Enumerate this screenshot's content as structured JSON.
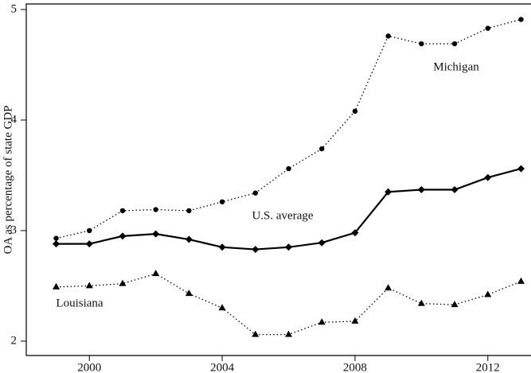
{
  "chart_data": {
    "type": "line",
    "y_label": "OA as percentage of state GDP",
    "x": [
      1999,
      2000,
      2001,
      2002,
      2003,
      2004,
      2005,
      2006,
      2007,
      2008,
      2009,
      2010,
      2011,
      2012,
      2013
    ],
    "series": [
      {
        "name": "Michigan",
        "color": "#000000",
        "marker": "circle",
        "dash": "dotted",
        "values": [
          2.93,
          3.0,
          3.18,
          3.19,
          3.18,
          3.26,
          3.34,
          3.56,
          3.74,
          4.08,
          4.76,
          4.69,
          4.69,
          4.83,
          4.91
        ]
      },
      {
        "name": "U.S. average",
        "color": "#000000",
        "marker": "diamond",
        "dash": "solid",
        "values": [
          2.88,
          2.88,
          2.95,
          2.97,
          2.92,
          2.85,
          2.83,
          2.85,
          2.89,
          2.98,
          3.35,
          3.37,
          3.37,
          3.48,
          3.56
        ]
      },
      {
        "name": "Louisiana",
        "color": "#000000",
        "marker": "triangle",
        "dash": "dotted",
        "values": [
          2.49,
          2.5,
          2.52,
          2.61,
          2.43,
          2.3,
          2.06,
          2.06,
          2.17,
          2.18,
          2.48,
          2.34,
          2.33,
          2.42,
          2.54
        ]
      }
    ],
    "xlim": [
      1998.1,
      2013.3
    ],
    "xticks": [
      2000,
      2004,
      2008,
      2012
    ],
    "ylim": [
      1.87,
      5.05
    ],
    "yticks": [
      2,
      3,
      4,
      5
    ]
  }
}
